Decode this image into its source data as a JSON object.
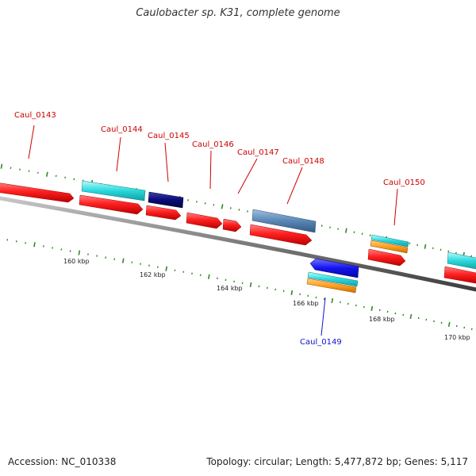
{
  "title": "Caulobacter sp. K31, complete genome",
  "footer": {
    "accession": "Accession: NC_010338",
    "summary": "Topology: circular; Length: 5,477,872 bp; Genes: 5,117"
  },
  "colors": {
    "backbone": "#7a7a7a",
    "tick": "#2e8b22",
    "ruler_text": "#222222",
    "gene_red": "#ff2020",
    "gene_cyan": "#28d8dc",
    "gene_navy": "#0a0a78",
    "gene_steel": "#5a86b4",
    "gene_blue": "#1414ee",
    "gene_orange": "#ffa020",
    "label_red": "#cc0000",
    "label_blue": "#1010cc"
  },
  "ruler": [
    "160 kbp",
    "162 kbp",
    "164 kbp",
    "166 kbp",
    "168 kbp",
    "170 kbp"
  ],
  "gene_labels": [
    {
      "text": "Caul_0143",
      "color": "red"
    },
    {
      "text": "Caul_0144",
      "color": "red"
    },
    {
      "text": "Caul_0145",
      "color": "red"
    },
    {
      "text": "Caul_0146",
      "color": "red"
    },
    {
      "text": "Caul_0147",
      "color": "red"
    },
    {
      "text": "Caul_0148",
      "color": "red"
    },
    {
      "text": "Caul_0150",
      "color": "red"
    },
    {
      "text": "Caul_0149",
      "color": "blue"
    }
  ]
}
